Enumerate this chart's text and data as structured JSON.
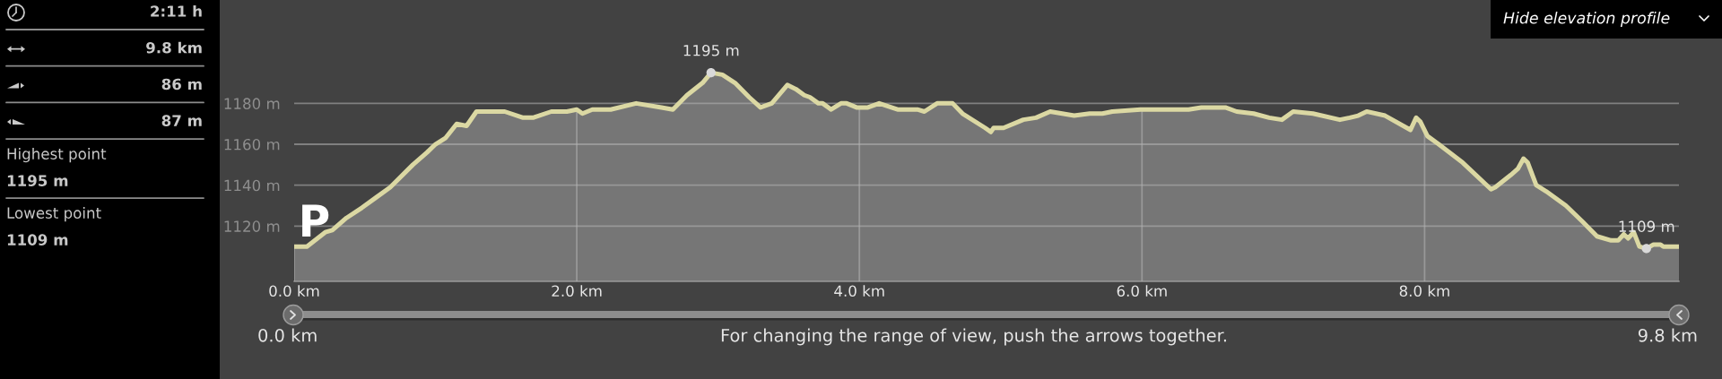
{
  "chart_data": [
    {
      "type": "other",
      "annotations": [
        "2:11 h",
        "9.8 km",
        "86 m",
        "87 m",
        "Highest point",
        "1195 m",
        "Lowest point",
        "1109 m"
      ]
    },
    {
      "type": "area",
      "series": [
        {
          "type": "area",
          "color": "#767676",
          "x": [
            0,
            0.09,
            0.22,
            0.27,
            0.37,
            0.48,
            0.58,
            0.68,
            0.84,
            0.94,
            1.0,
            1.07,
            1.15,
            1.22,
            1.29,
            1.38,
            1.49,
            1.62,
            1.69,
            1.82,
            1.93,
            2.0,
            2.04,
            2.11,
            2.24,
            2.42,
            2.6,
            2.68,
            2.78,
            2.89,
            2.95,
            3.03,
            3.12,
            3.22,
            3.3,
            3.38,
            3.49,
            3.55,
            3.61,
            3.65,
            3.71,
            3.74,
            3.8,
            3.87,
            3.91,
            3.98,
            4.06,
            4.14,
            4.27,
            4.41,
            4.46,
            4.55,
            4.66,
            4.73,
            4.89,
            4.93,
            4.95,
            5.02,
            5.16,
            5.25,
            5.35,
            5.52,
            5.63,
            5.72,
            5.79,
            5.99,
            6.33,
            6.42,
            6.59,
            6.67,
            6.79,
            6.9,
            6.99,
            7.07,
            7.21,
            7.4,
            7.47,
            7.53,
            7.59,
            7.72,
            7.9,
            7.94,
            7.97,
            8.02,
            8.1,
            8.27,
            8.47,
            8.5,
            8.61,
            8.66,
            8.7,
            8.73,
            8.79,
            8.86,
            9.0,
            9.12,
            9.22,
            9.32,
            9.37,
            9.41,
            9.44,
            9.48,
            9.52,
            9.57,
            9.62,
            9.67,
            9.69,
            9.8
          ],
          "values": [
            1110,
            1110,
            1117,
            1118,
            1124,
            1129,
            1134,
            1139,
            1150,
            1156,
            1160,
            1163,
            1170,
            1169,
            1176,
            1176,
            1176,
            1173,
            1173,
            1176,
            1176,
            1177,
            1175,
            1177,
            1177,
            1180,
            1178,
            1177,
            1184,
            1190,
            1195,
            1194,
            1190,
            1183,
            1178,
            1180,
            1189,
            1187,
            1184,
            1183,
            1180,
            1180,
            1177,
            1180,
            1180,
            1178,
            1178,
            1180,
            1177,
            1177,
            1176,
            1180,
            1180,
            1175,
            1168,
            1166,
            1168,
            1168,
            1172,
            1173,
            1176,
            1174,
            1175,
            1175,
            1176,
            1177,
            1177,
            1178,
            1178,
            1176,
            1175,
            1173,
            1172,
            1176,
            1175,
            1172,
            1173,
            1174,
            1176,
            1174,
            1167,
            1173,
            1171,
            1164,
            1160,
            1151,
            1138,
            1139,
            1145,
            1148,
            1153,
            1151,
            1140,
            1137,
            1130,
            1122,
            1115,
            1113,
            1113,
            1116,
            1114,
            1117,
            1110,
            1109,
            1111,
            1111,
            1110,
            1110
          ]
        },
        {
          "type": "scatter",
          "color": "#d9d9d9",
          "x": [
            2.95,
            9.57
          ],
          "values": [
            1195,
            1109
          ]
        }
      ],
      "xlim": [
        0,
        9.8
      ],
      "ylim": [
        1093,
        1200
      ],
      "xticks": [
        {
          "value": 0,
          "label": "0.0 km"
        },
        {
          "value": 2,
          "label": "2.0 km"
        },
        {
          "value": 4,
          "label": "4.0 km"
        },
        {
          "value": 6,
          "label": "6.0 km"
        },
        {
          "value": 8,
          "label": "8.0 km"
        }
      ],
      "yticks": [
        {
          "value": 1120,
          "label": "1120 m"
        },
        {
          "value": 1140,
          "label": "1140 m"
        },
        {
          "value": 1160,
          "label": "1160 m"
        },
        {
          "value": 1180,
          "label": "1180 m"
        }
      ],
      "grid": true,
      "annotations": [
        {
          "text": "1195 m",
          "x": 2.95,
          "y": 1195
        },
        {
          "text": "1109 m",
          "x": 9.57,
          "y": 1109
        },
        "P",
        "Hide elevation profile",
        "0.0 km",
        "For changing the range of view, push the arrows together.",
        "9.8 km"
      ]
    }
  ]
}
